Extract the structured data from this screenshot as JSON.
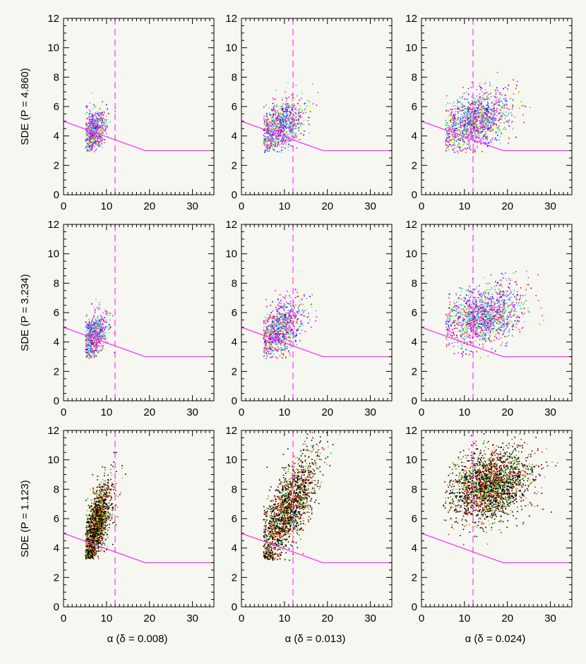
{
  "chart_data": {
    "type": "scatter",
    "rows": [
      {
        "ylabel": "SDE (P = 4.860)"
      },
      {
        "ylabel": "SDE (P = 3.234)"
      },
      {
        "ylabel": "SDE (P = 1.123)"
      }
    ],
    "columns": [
      {
        "xlabel": "α (δ = 0.008)"
      },
      {
        "xlabel": "α (δ = 0.013)"
      },
      {
        "xlabel": "α (δ = 0.024)"
      }
    ],
    "xlim": [
      0,
      35
    ],
    "ylim": [
      0,
      12
    ],
    "x_ticks": [
      0,
      10,
      20,
      30
    ],
    "y_ticks": [
      0,
      2,
      4,
      6,
      8,
      10,
      12
    ],
    "threshold_line": {
      "color": "#ff33ff",
      "points": [
        [
          0,
          5
        ],
        [
          19,
          3
        ],
        [
          35,
          3
        ]
      ]
    },
    "vertical_line": {
      "color": "#ff33ff",
      "x": 12,
      "style": "dashed"
    },
    "point_palettes": {
      "colored": [
        "#ff00ff",
        "#ff00ff",
        "#ff00ff",
        "#0000ff",
        "#00ffff",
        "#00ff00",
        "#ff0000",
        "#ffff00",
        "#9966ff",
        "#00ccff"
      ],
      "dark": [
        "#000000",
        "#000000",
        "#000000",
        "#000000",
        "#ff0000",
        "#ff8800",
        "#00cc00"
      ]
    },
    "clusters": [
      {
        "row": 0,
        "col": 0,
        "palette": "colored",
        "n": 700,
        "mean": [
          7,
          4.4
        ],
        "sd": [
          1.5,
          0.7
        ],
        "corr": 0.3,
        "xmin": 5,
        "ymin": 2.9
      },
      {
        "row": 0,
        "col": 1,
        "palette": "colored",
        "n": 950,
        "mean": [
          8.8,
          4.7
        ],
        "sd": [
          2.8,
          0.9
        ],
        "corr": 0.4,
        "xmin": 5,
        "ymin": 2.9
      },
      {
        "row": 0,
        "col": 2,
        "palette": "colored",
        "n": 1400,
        "mean": [
          12.5,
          5.1
        ],
        "sd": [
          4,
          1.0
        ],
        "corr": 0.4,
        "xmin": 5.5,
        "ymin": 2.9
      },
      {
        "row": 1,
        "col": 0,
        "palette": "colored",
        "n": 700,
        "mean": [
          7,
          4.5
        ],
        "sd": [
          1.5,
          0.75
        ],
        "corr": 0.3,
        "xmin": 5,
        "ymin": 2.9
      },
      {
        "row": 1,
        "col": 1,
        "palette": "colored",
        "n": 1000,
        "mean": [
          9,
          5.0
        ],
        "sd": [
          2.8,
          1.0
        ],
        "corr": 0.5,
        "xmin": 5,
        "ymin": 2.9
      },
      {
        "row": 1,
        "col": 2,
        "palette": "colored",
        "n": 1500,
        "mean": [
          14,
          5.8
        ],
        "sd": [
          4.5,
          1.0
        ],
        "corr": 0.3,
        "xmin": 5.5,
        "ymin": 2.9
      },
      {
        "row": 2,
        "col": 0,
        "palette": "dark",
        "n": 1500,
        "mean": [
          7.5,
          5.5
        ],
        "sd": [
          1.8,
          1.5
        ],
        "corr": 0.7,
        "xmin": 5,
        "ymin": 3.3
      },
      {
        "row": 2,
        "col": 1,
        "palette": "dark",
        "n": 1800,
        "mean": [
          10.5,
          6.6
        ],
        "sd": [
          3.5,
          1.9
        ],
        "corr": 0.75,
        "xmin": 5,
        "ymin": 3.2
      },
      {
        "row": 2,
        "col": 2,
        "palette": "dark",
        "n": 2200,
        "mean": [
          16,
          8.3
        ],
        "sd": [
          4.5,
          1.2
        ],
        "corr": 0.25,
        "xmin": 5,
        "ymin": 3.5
      }
    ]
  }
}
